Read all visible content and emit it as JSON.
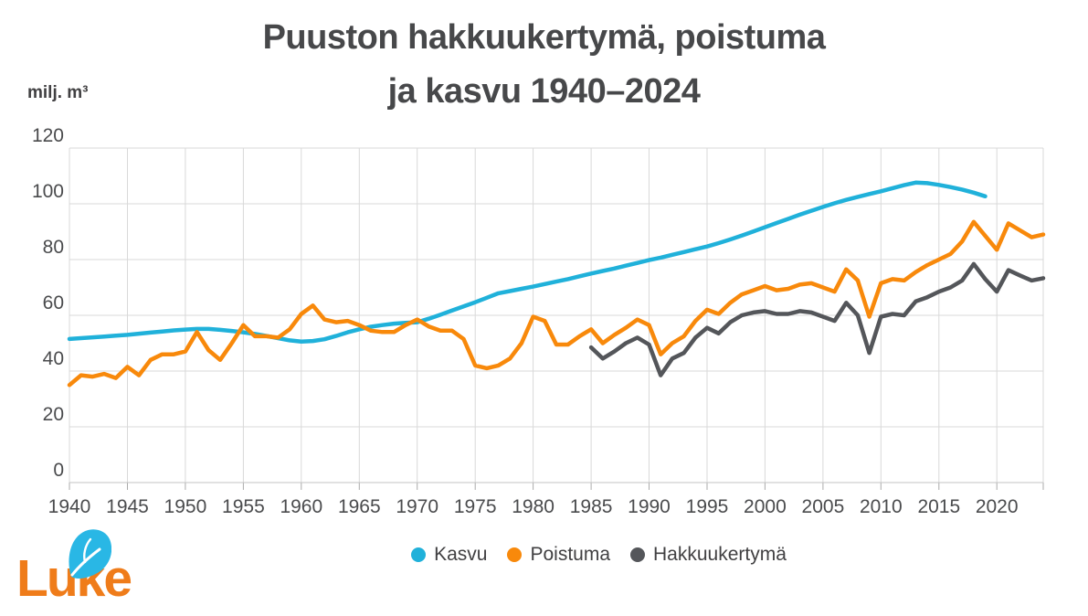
{
  "title": {
    "line1": "Puuston hakkuukertymä, poistuma",
    "line2": "ja kasvu 1940–2024"
  },
  "y_axis": {
    "unit": "milj. m³",
    "ticks": [
      0,
      20,
      40,
      60,
      80,
      100,
      120
    ]
  },
  "x_axis": {
    "tick_years": [
      1940,
      1945,
      1950,
      1955,
      1960,
      1965,
      1970,
      1975,
      1980,
      1985,
      1990,
      1995,
      2000,
      2005,
      2010,
      2015,
      2020
    ]
  },
  "logo": {
    "text": "Luke"
  },
  "colors": {
    "kasvu": "#20b1da",
    "poistuma": "#f8890b",
    "hakkuukertyma": "#54565a",
    "title_text": "#47484a",
    "axis_text": "#4a4b4d",
    "gridline": "#d9d9d9"
  },
  "chart_data": {
    "type": "line",
    "title": "Puuston hakkuukertymä, poistuma ja kasvu 1940–2024",
    "ylabel": "milj. m³",
    "ylim": [
      0,
      120
    ],
    "xlim": [
      1940,
      2024
    ],
    "grid": true,
    "legend_position": "bottom-center",
    "series": [
      {
        "name": "Kasvu",
        "color": "#20b1da",
        "start_year": 1940,
        "end_year": 2019,
        "values": [
          51.5,
          51.8,
          52.1,
          52.4,
          52.7,
          53.0,
          53.4,
          53.8,
          54.2,
          54.6,
          54.9,
          55.1,
          55.1,
          54.8,
          54.4,
          53.9,
          53.3,
          52.6,
          51.8,
          51.0,
          50.6,
          50.8,
          51.4,
          52.6,
          53.9,
          55.0,
          55.9,
          56.5,
          57.0,
          57.3,
          57.5,
          58.8,
          60.2,
          61.7,
          63.2,
          64.7,
          66.3,
          67.9,
          68.7,
          69.5,
          70.3,
          71.2,
          72.1,
          73.0,
          74.0,
          75.0,
          75.9,
          76.8,
          77.8,
          78.8,
          79.8,
          80.7,
          81.7,
          82.7,
          83.7,
          84.7,
          85.9,
          87.2,
          88.6,
          90.1,
          91.6,
          93.1,
          94.6,
          96.1,
          97.5,
          98.9,
          100.2,
          101.4,
          102.5,
          103.5,
          104.5,
          105.6,
          106.7,
          107.6,
          107.4,
          106.8,
          106.0,
          105.1,
          104.0,
          102.7
        ]
      },
      {
        "name": "Poistuma",
        "color": "#f8890b",
        "start_year": 1940,
        "end_year": 2024,
        "values": [
          35.0,
          38.5,
          38.0,
          39.0,
          37.5,
          41.5,
          38.5,
          44.0,
          46.0,
          46.0,
          47.0,
          54.0,
          47.5,
          44.0,
          50.0,
          56.5,
          52.5,
          52.5,
          52.0,
          55.0,
          60.5,
          63.5,
          58.5,
          57.5,
          58.0,
          56.5,
          54.5,
          54.0,
          54.0,
          56.5,
          58.5,
          56.0,
          54.5,
          54.5,
          51.5,
          42.0,
          41.0,
          42.0,
          44.5,
          50.0,
          59.5,
          58.0,
          49.5,
          49.5,
          52.5,
          55.0,
          50.0,
          53.0,
          55.5,
          58.5,
          56.5,
          46.0,
          50.0,
          52.5,
          58.0,
          62.0,
          60.5,
          64.5,
          67.5,
          69.0,
          70.5,
          69.0,
          69.5,
          71.0,
          71.5,
          70.0,
          68.5,
          76.5,
          72.5,
          59.5,
          71.5,
          73.0,
          72.5,
          75.5,
          78.0,
          80.0,
          82.0,
          86.5,
          93.5,
          88.5,
          83.5,
          93.0,
          90.5,
          88.0,
          89.0
        ]
      },
      {
        "name": "Hakkuukertymä",
        "color": "#54565a",
        "start_year": 1985,
        "end_year": 2024,
        "values": [
          48.5,
          44.5,
          47.0,
          50.0,
          52.0,
          49.5,
          38.5,
          44.5,
          46.5,
          52.0,
          55.5,
          53.5,
          57.5,
          60.0,
          61.0,
          61.5,
          60.5,
          60.5,
          61.5,
          61.0,
          59.5,
          58.0,
          64.5,
          60.0,
          46.5,
          59.5,
          60.5,
          60.0,
          65.0,
          66.5,
          68.5,
          70.0,
          72.5,
          78.4,
          73.0,
          68.5,
          76.2,
          74.3,
          72.5,
          73.3
        ]
      }
    ]
  }
}
